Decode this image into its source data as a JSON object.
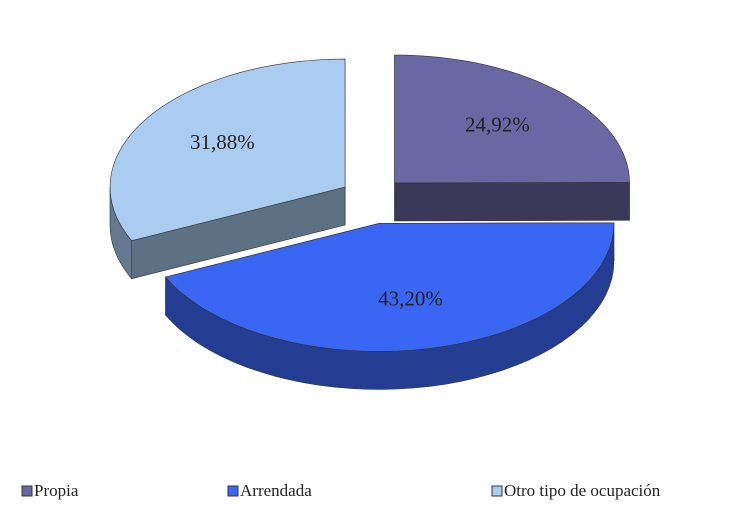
{
  "chart_data": {
    "type": "pie3d",
    "categories": [
      "Propia",
      "Arrendada",
      "Otro tipo de ocupación"
    ],
    "values": [
      24.92,
      43.2,
      31.88
    ],
    "value_labels": [
      "24,92%",
      "43,20%",
      "31,88%"
    ],
    "colors": [
      "#6a68a4",
      "#3a66f4",
      "#a9ccf0"
    ],
    "legend": "bottom"
  }
}
